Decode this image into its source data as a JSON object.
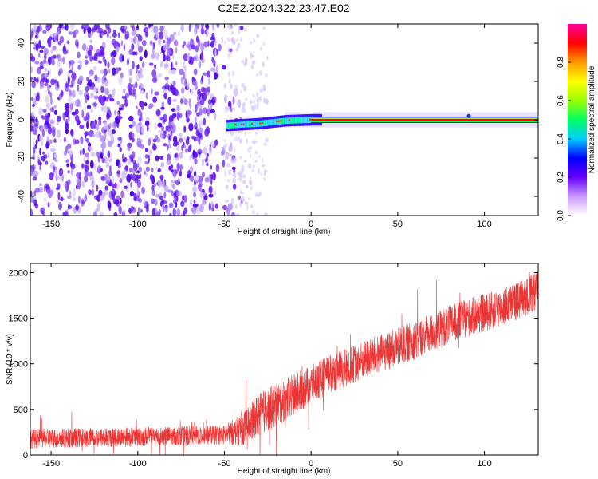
{
  "title": "C2E2.2024.322.23.47.E02",
  "chart_data": [
    {
      "type": "heatmap",
      "xlabel": "Height of straight line (km)",
      "ylabel": "Frequency (Hz)",
      "xlim": [
        -162,
        131
      ],
      "ylim": [
        -50,
        50
      ],
      "xticks": [
        -150,
        -100,
        -50,
        0,
        50,
        100
      ],
      "yticks": [
        -40,
        -20,
        0,
        20,
        40
      ],
      "grid": false,
      "colorbar": {
        "label": "Normalized spectral amplitude",
        "range": [
          0,
          1
        ],
        "ticks": [
          "0.0",
          "0.2",
          "0.4",
          "0.6",
          "0.8"
        ],
        "colors": [
          "#ffffff",
          "#cc99ff",
          "#6600ff",
          "#0000ff",
          "#00ccff",
          "#00ff66",
          "#99ff00",
          "#ffff00",
          "#ff9900",
          "#ff0000",
          "#ff0099"
        ]
      },
      "signal": {
        "description_points": [
          {
            "x": -49,
            "y": -3
          },
          {
            "x": -30,
            "y": -2
          },
          {
            "x": -15,
            "y": -0.5
          },
          {
            "x": 0,
            "y": 0
          },
          {
            "x": 131,
            "y": 0
          }
        ]
      }
    },
    {
      "type": "line",
      "xlabel": "Height of straight line (km)",
      "ylabel": "SNR (10 * v/v)",
      "xlim": [
        -162,
        131
      ],
      "ylim": [
        0,
        2100
      ],
      "xticks": [
        -150,
        -100,
        -50,
        0,
        50,
        100
      ],
      "yticks": [
        0,
        500,
        1000,
        1500,
        2000
      ],
      "grid": false,
      "series": [
        {
          "color": "#ee3333",
          "x": [
            -162,
            -100,
            -50,
            -40,
            -30,
            -20,
            -10,
            0,
            10,
            20,
            30,
            40,
            50,
            60,
            70,
            80,
            90,
            100,
            110,
            120,
            131
          ],
          "y": [
            180,
            200,
            220,
            280,
            450,
            550,
            650,
            780,
            880,
            960,
            1040,
            1110,
            1180,
            1260,
            1350,
            1430,
            1500,
            1560,
            1620,
            1700,
            1800
          ],
          "noise_amplitude": [
            180,
            180,
            180,
            300,
            400,
            400,
            400,
            350,
            350,
            350,
            350,
            350,
            350,
            350,
            350,
            350,
            350,
            350,
            350,
            350,
            350
          ]
        }
      ]
    }
  ]
}
